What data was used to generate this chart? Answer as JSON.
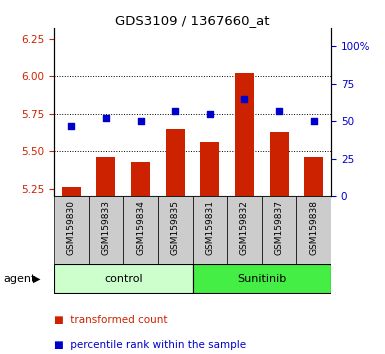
{
  "title": "GDS3109 / 1367660_at",
  "samples": [
    "GSM159830",
    "GSM159833",
    "GSM159834",
    "GSM159835",
    "GSM159831",
    "GSM159832",
    "GSM159837",
    "GSM159838"
  ],
  "red_values": [
    5.26,
    5.46,
    5.43,
    5.65,
    5.56,
    6.02,
    5.63,
    5.46
  ],
  "blue_values": [
    47,
    52,
    50,
    57,
    55,
    65,
    57,
    50
  ],
  "groups": [
    {
      "label": "control",
      "count": 4,
      "color": "#ccffcc"
    },
    {
      "label": "Sunitinib",
      "count": 4,
      "color": "#44ee44"
    }
  ],
  "ylim_left": [
    5.2,
    6.32
  ],
  "ylim_right": [
    0,
    112
  ],
  "yticks_left": [
    5.25,
    5.5,
    5.75,
    6.0,
    6.25
  ],
  "yticks_right": [
    0,
    25,
    50,
    75,
    100
  ],
  "ytick_labels_right": [
    "0",
    "25",
    "50",
    "75",
    "100%"
  ],
  "bar_color": "#cc2200",
  "dot_color": "#0000cc",
  "bar_bottom": 5.2,
  "agent_label": "agent",
  "legend": [
    "transformed count",
    "percentile rank within the sample"
  ],
  "grid_yticks": [
    5.5,
    5.75,
    6.0
  ],
  "tickbox_color": "#cccccc",
  "fig_width": 3.85,
  "fig_height": 3.54
}
